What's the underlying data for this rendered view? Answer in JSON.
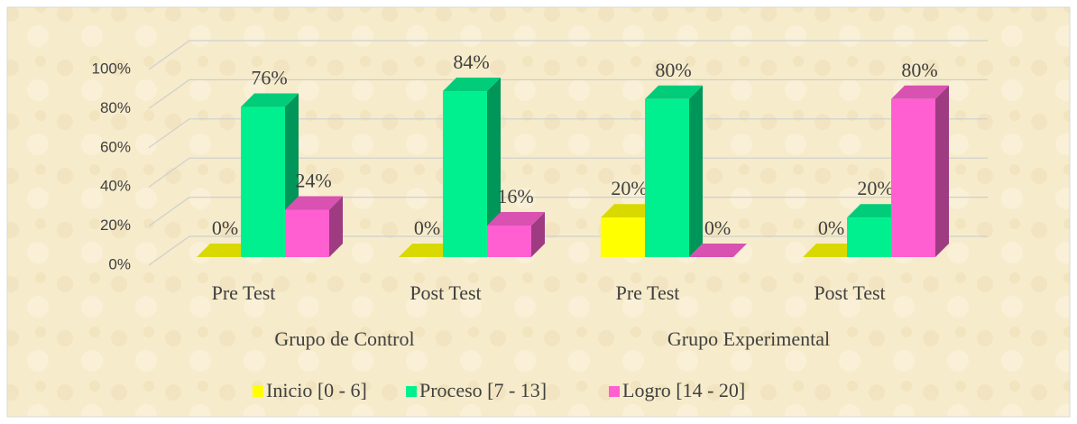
{
  "chart_data": {
    "type": "bar3d",
    "categories": [
      "Pre Test",
      "Post Test",
      "Pre Test",
      "Post Test"
    ],
    "groups": [
      "Grupo de Control",
      "Grupo Experimental"
    ],
    "series": [
      {
        "name": "Inicio [0 - 6]",
        "color": "#ffff00",
        "values": [
          0,
          0,
          20,
          0
        ],
        "value_labels": [
          "0%",
          "0%",
          "20%",
          "0%"
        ]
      },
      {
        "name": "Proceso [7 - 13]",
        "color": "#00f090",
        "values": [
          76,
          84,
          80,
          20
        ],
        "value_labels": [
          "76%",
          "84%",
          "80%",
          "20%"
        ]
      },
      {
        "name": "Logro [14 - 20]",
        "color": "#ff5fd0",
        "values": [
          24,
          16,
          0,
          80
        ],
        "value_labels": [
          "24%",
          "16%",
          "0%",
          "80%"
        ]
      }
    ],
    "ylim": [
      0,
      100
    ],
    "yticks": [
      {
        "value": 0,
        "label": "0%"
      },
      {
        "value": 20,
        "label": "20%"
      },
      {
        "value": 40,
        "label": "40%"
      },
      {
        "value": 60,
        "label": "60%"
      },
      {
        "value": 80,
        "label": "80%"
      },
      {
        "value": 100,
        "label": "100%"
      }
    ],
    "grid": true,
    "legend": "bottom"
  }
}
